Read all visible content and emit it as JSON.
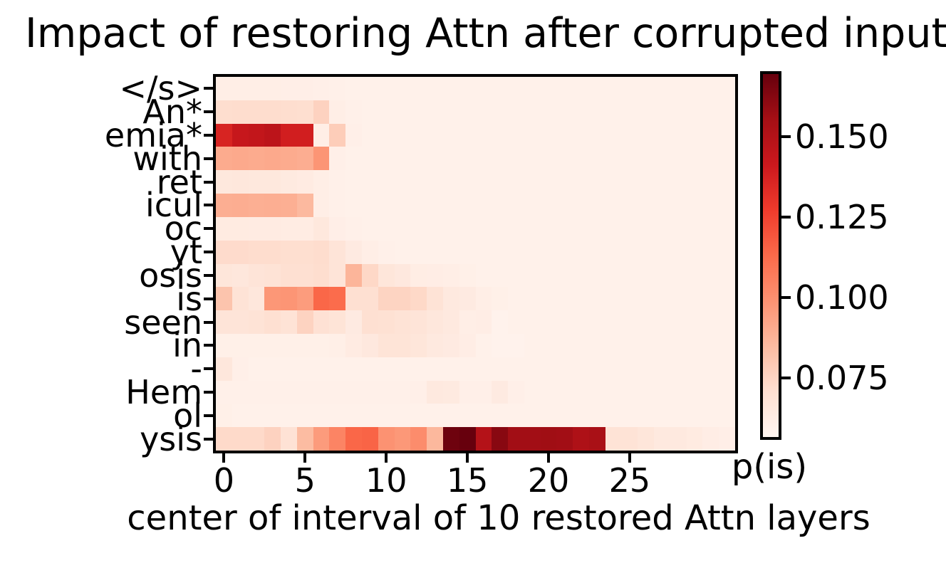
{
  "figure": {
    "title": "Impact of restoring Attn after corrupted input",
    "xlabel": "center of interval of 10 restored Attn layers",
    "colorbar_label": "p(is)"
  },
  "chart_data": {
    "type": "heatmap",
    "title": "Impact of restoring Attn after corrupted input",
    "xlabel": "center of interval of 10 restored Attn layers",
    "ylabel": "",
    "legend": "none",
    "colormap": "Reds",
    "vmin": 0.0566,
    "vmax": 0.1695,
    "n_rows": 16,
    "n_cols": 32,
    "x_range": [
      -0.5,
      31.5
    ],
    "x_tick_values": [
      0,
      5,
      10,
      15,
      20,
      25
    ],
    "x_tick_labels": [
      "0",
      "5",
      "10",
      "15",
      "20",
      "25"
    ],
    "y_labels": [
      "</s>",
      "An*",
      "emia*",
      "with",
      "ret",
      "icul",
      "oc",
      "yt",
      "osis",
      "is",
      "seen",
      "in",
      "-",
      "Hem",
      "ol",
      "ysis"
    ],
    "colorbar": {
      "label": "p(is)",
      "ticks": [
        {
          "value": 0.15,
          "label": "0.150"
        },
        {
          "value": 0.125,
          "label": "0.125"
        },
        {
          "value": 0.1,
          "label": "0.100"
        },
        {
          "value": 0.075,
          "label": "0.075"
        }
      ]
    },
    "values": [
      [
        0.0615,
        0.0615,
        0.0615,
        0.0615,
        0.061,
        0.061,
        0.0605,
        0.06,
        0.0595,
        0.0595,
        0.0595,
        0.0595,
        0.0595,
        0.0595,
        0.0595,
        0.0595,
        0.0595,
        0.0595,
        0.0595,
        0.0595,
        0.0595,
        0.0595,
        0.0595,
        0.0595,
        0.0595,
        0.0595,
        0.0595,
        0.0595,
        0.0595,
        0.0595,
        0.0595,
        0.0595
      ],
      [
        0.0715,
        0.0718,
        0.0718,
        0.072,
        0.0715,
        0.0712,
        0.076,
        0.0615,
        0.0598,
        0.0595,
        0.0595,
        0.0595,
        0.0595,
        0.0595,
        0.0595,
        0.0595,
        0.0595,
        0.0595,
        0.0595,
        0.0595,
        0.0595,
        0.0595,
        0.0595,
        0.0595,
        0.0595,
        0.0595,
        0.0595,
        0.0595,
        0.0595,
        0.0595,
        0.0595,
        0.0595
      ],
      [
        0.1365,
        0.143,
        0.1445,
        0.147,
        0.139,
        0.139,
        0.0615,
        0.078,
        0.0605,
        0.0595,
        0.0595,
        0.0595,
        0.0595,
        0.0595,
        0.0595,
        0.0595,
        0.0595,
        0.0595,
        0.0595,
        0.0595,
        0.0595,
        0.0595,
        0.0595,
        0.0595,
        0.0595,
        0.0595,
        0.0595,
        0.0595,
        0.0595,
        0.0595,
        0.0595,
        0.0595
      ],
      [
        0.0905,
        0.091,
        0.0905,
        0.091,
        0.0905,
        0.0895,
        0.098,
        0.0605,
        0.0595,
        0.0595,
        0.0595,
        0.0595,
        0.0595,
        0.0595,
        0.0595,
        0.0595,
        0.0595,
        0.0595,
        0.0595,
        0.0595,
        0.0595,
        0.0595,
        0.0595,
        0.0595,
        0.0595,
        0.0595,
        0.0595,
        0.0595,
        0.0595,
        0.0595,
        0.0595,
        0.0595
      ],
      [
        0.0655,
        0.066,
        0.0655,
        0.0655,
        0.064,
        0.063,
        0.0615,
        0.0598,
        0.0595,
        0.0595,
        0.0595,
        0.0595,
        0.0595,
        0.0595,
        0.0595,
        0.0595,
        0.0595,
        0.0595,
        0.0595,
        0.0595,
        0.0595,
        0.0595,
        0.0595,
        0.0595,
        0.0595,
        0.0595,
        0.0595,
        0.0595,
        0.0595,
        0.0595,
        0.0595,
        0.0595
      ],
      [
        0.0893,
        0.0896,
        0.089,
        0.0893,
        0.089,
        0.0855,
        0.0615,
        0.0598,
        0.0595,
        0.0595,
        0.0595,
        0.0595,
        0.0595,
        0.0595,
        0.0595,
        0.0595,
        0.0595,
        0.0595,
        0.0595,
        0.0595,
        0.0595,
        0.0595,
        0.0595,
        0.0595,
        0.0595,
        0.0595,
        0.0595,
        0.0595,
        0.0595,
        0.0595,
        0.0595,
        0.0595
      ],
      [
        0.0635,
        0.0635,
        0.063,
        0.063,
        0.0625,
        0.0625,
        0.0655,
        0.061,
        0.0598,
        0.0595,
        0.0595,
        0.0595,
        0.0595,
        0.0595,
        0.0595,
        0.0595,
        0.0595,
        0.0595,
        0.0595,
        0.0595,
        0.0595,
        0.0595,
        0.0595,
        0.0595,
        0.0595,
        0.0595,
        0.0595,
        0.0595,
        0.0595,
        0.0595,
        0.0595,
        0.0595
      ],
      [
        0.0725,
        0.0725,
        0.072,
        0.0718,
        0.0712,
        0.0712,
        0.0718,
        0.068,
        0.0638,
        0.0612,
        0.0598,
        0.0595,
        0.0595,
        0.0595,
        0.0595,
        0.0595,
        0.0595,
        0.0595,
        0.0595,
        0.0595,
        0.0595,
        0.0595,
        0.0595,
        0.0595,
        0.0595,
        0.0595,
        0.0595,
        0.0595,
        0.0595,
        0.0595,
        0.0595,
        0.0595
      ],
      [
        0.0668,
        0.0662,
        0.0678,
        0.0688,
        0.0705,
        0.0705,
        0.0715,
        0.0678,
        0.087,
        0.0738,
        0.0668,
        0.0652,
        0.0622,
        0.0618,
        0.0612,
        0.0602,
        0.0595,
        0.0595,
        0.0595,
        0.0595,
        0.0595,
        0.0595,
        0.0595,
        0.0595,
        0.0595,
        0.0595,
        0.0595,
        0.0595,
        0.0595,
        0.0595,
        0.0595,
        0.0595
      ],
      [
        0.0814,
        0.0688,
        0.0658,
        0.0973,
        0.098,
        0.0955,
        0.114,
        0.1125,
        0.0705,
        0.0705,
        0.0752,
        0.0752,
        0.0735,
        0.0688,
        0.0648,
        0.0638,
        0.0612,
        0.0602,
        0.0595,
        0.0595,
        0.0595,
        0.0595,
        0.0595,
        0.0595,
        0.0595,
        0.0595,
        0.0595,
        0.0595,
        0.0595,
        0.0595,
        0.0595,
        0.0595
      ],
      [
        0.068,
        0.068,
        0.0688,
        0.0705,
        0.0688,
        0.0755,
        0.0698,
        0.0683,
        0.0638,
        0.0705,
        0.0702,
        0.0688,
        0.0678,
        0.0658,
        0.0648,
        0.0612,
        0.0618,
        0.0583,
        0.0595,
        0.0595,
        0.0595,
        0.0595,
        0.0595,
        0.0595,
        0.0595,
        0.0595,
        0.0595,
        0.0595,
        0.0595,
        0.0595,
        0.0595,
        0.0595
      ],
      [
        0.0602,
        0.0602,
        0.0602,
        0.0602,
        0.0602,
        0.0602,
        0.0602,
        0.0608,
        0.0632,
        0.0652,
        0.0682,
        0.0682,
        0.0668,
        0.0648,
        0.0638,
        0.0618,
        0.0592,
        0.0583,
        0.0583,
        0.0595,
        0.0595,
        0.0595,
        0.0595,
        0.0595,
        0.0595,
        0.0595,
        0.0595,
        0.0595,
        0.0595,
        0.0595,
        0.0595,
        0.0595
      ],
      [
        0.0662,
        0.0605,
        0.0595,
        0.0595,
        0.0595,
        0.0595,
        0.0595,
        0.0595,
        0.0595,
        0.0595,
        0.0595,
        0.0595,
        0.0595,
        0.0595,
        0.0595,
        0.0595,
        0.0595,
        0.0595,
        0.0595,
        0.0595,
        0.0595,
        0.0595,
        0.0595,
        0.0595,
        0.0595,
        0.0595,
        0.0595,
        0.0595,
        0.0595,
        0.0595,
        0.0595,
        0.0595
      ],
      [
        0.0598,
        0.0598,
        0.0598,
        0.0598,
        0.0598,
        0.0598,
        0.0598,
        0.0598,
        0.0598,
        0.0598,
        0.0598,
        0.0598,
        0.0605,
        0.0648,
        0.0643,
        0.0605,
        0.0605,
        0.0638,
        0.0605,
        0.0595,
        0.0595,
        0.0595,
        0.0595,
        0.0595,
        0.0595,
        0.0595,
        0.0595,
        0.0595,
        0.0595,
        0.0595,
        0.0595,
        0.0595
      ],
      [
        0.0602,
        0.0595,
        0.0595,
        0.0595,
        0.0595,
        0.0595,
        0.0595,
        0.0595,
        0.0595,
        0.0595,
        0.0595,
        0.0595,
        0.0595,
        0.0595,
        0.0595,
        0.0595,
        0.0595,
        0.0595,
        0.0595,
        0.0595,
        0.0595,
        0.0595,
        0.0595,
        0.0595,
        0.0595,
        0.0595,
        0.0595,
        0.0595,
        0.0595,
        0.0595,
        0.0595,
        0.0595
      ],
      [
        0.073,
        0.073,
        0.073,
        0.076,
        0.0695,
        0.0845,
        0.096,
        0.104,
        0.114,
        0.115,
        0.099,
        0.097,
        0.101,
        0.086,
        0.168,
        0.1695,
        0.15,
        0.162,
        0.156,
        0.156,
        0.1565,
        0.156,
        0.152,
        0.154,
        0.069,
        0.069,
        0.067,
        0.0645,
        0.0645,
        0.0635,
        0.062,
        0.061
      ]
    ]
  }
}
